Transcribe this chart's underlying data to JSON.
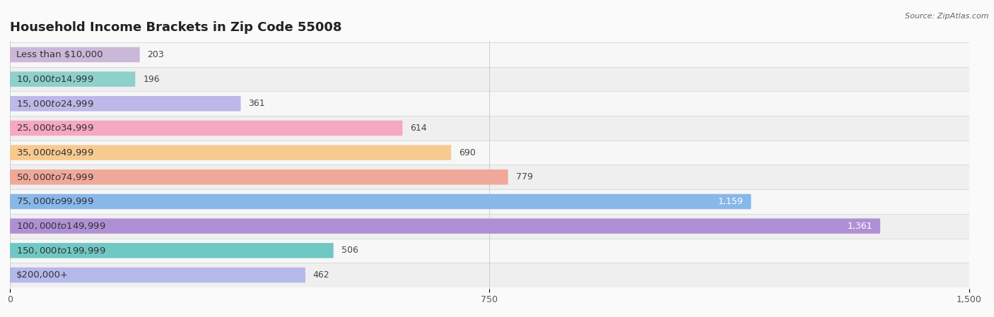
{
  "title": "Household Income Brackets in Zip Code 55008",
  "source": "Source: ZipAtlas.com",
  "categories": [
    "Less than $10,000",
    "$10,000 to $14,999",
    "$15,000 to $24,999",
    "$25,000 to $34,999",
    "$35,000 to $49,999",
    "$50,000 to $74,999",
    "$75,000 to $99,999",
    "$100,000 to $149,999",
    "$150,000 to $199,999",
    "$200,000+"
  ],
  "values": [
    203,
    196,
    361,
    614,
    690,
    779,
    1159,
    1361,
    506,
    462
  ],
  "bar_colors": [
    "#cbb8d8",
    "#8dd0cc",
    "#bcb8e8",
    "#f5a8c0",
    "#f8ca90",
    "#f0a898",
    "#88b8ea",
    "#b090d4",
    "#70c8c4",
    "#b4b8ea"
  ],
  "row_colors": [
    "#f7f7f7",
    "#efefef"
  ],
  "xlim": [
    0,
    1500
  ],
  "xticks": [
    0,
    750,
    1500
  ],
  "title_fontsize": 13,
  "label_fontsize": 9.5,
  "value_fontsize": 9,
  "bar_height": 0.62,
  "figsize": [
    14.06,
    4.49
  ],
  "dpi": 100
}
